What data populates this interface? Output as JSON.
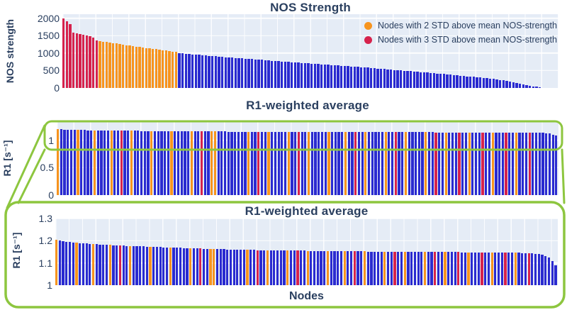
{
  "figure": {
    "top": {
      "title": "NOS Strength",
      "ylabel": "NOS strength"
    },
    "middle": {
      "title": "R1-weighted average",
      "ylabel": "R1 [s⁻¹]"
    },
    "bottom": {
      "title": "R1-weighted average",
      "ylabel": "R1 [s⁻¹]",
      "xlabel": "Nodes"
    },
    "legend": [
      {
        "color_key": "o",
        "label": "Nodes with 2 STD above mean NOS-strength"
      },
      {
        "color_key": "r",
        "label": "Nodes with 3 STD above mean NOS-strength"
      }
    ]
  },
  "colors": {
    "b": "#2a2ad0",
    "o": "#f7941e",
    "r": "#d6224c",
    "green": "#8dc63f",
    "plot_bg": "#e5ecf6",
    "text": "#2a3f5f"
  },
  "chart_data": [
    {
      "id": "nos",
      "type": "bar",
      "title": "NOS Strength",
      "xlabel": "",
      "ylabel": "NOS strength",
      "ylim": [
        0,
        2120
      ],
      "yticks": [
        0,
        500,
        1000,
        1500,
        2000
      ],
      "grid": true,
      "legend_position": "top-right-inside",
      "pitch": 4.667,
      "bar_width": 3.2,
      "values": [
        1990,
        1915,
        1840,
        1590,
        1565,
        1545,
        1530,
        1510,
        1480,
        1445,
        1370,
        1345,
        1330,
        1318,
        1305,
        1292,
        1278,
        1262,
        1246,
        1230,
        1215,
        1200,
        1188,
        1176,
        1164,
        1152,
        1140,
        1128,
        1116,
        1104,
        1090,
        1076,
        1062,
        1048,
        1030,
        1005,
        995,
        985,
        976,
        967,
        958,
        950,
        942,
        934,
        926,
        918,
        910,
        902,
        894,
        886,
        878,
        870,
        862,
        855,
        848,
        841,
        834,
        827,
        820,
        813,
        806,
        799,
        792,
        785,
        778,
        771,
        764,
        757,
        750,
        743,
        736,
        729,
        722,
        715,
        708,
        701,
        694,
        687,
        680,
        673,
        666,
        659,
        652,
        645,
        638,
        631,
        624,
        617,
        610,
        603,
        596,
        589,
        582,
        575,
        568,
        560,
        552,
        544,
        536,
        528,
        520,
        512,
        504,
        496,
        488,
        480,
        472,
        464,
        456,
        448,
        440,
        432,
        424,
        416,
        408,
        399,
        390,
        381,
        372,
        363,
        354,
        345,
        336,
        327,
        318,
        309,
        300,
        290,
        280,
        270,
        258,
        246,
        232,
        218,
        202,
        186,
        168,
        148,
        126,
        102,
        76,
        56,
        42,
        32,
        24,
        18,
        14,
        10,
        8,
        6
      ],
      "color_key": "rrrrrrrrrrroooooooooooooooooooooooobbbbbbbbbbbbbbbbbbbbbbbbbbbbbbbbbbbbbbbbbbbbbbbbbbbbbbbbbbbbbbbbbbbbbbbbbbbbbbbbbbbbbbbbbbbbbbbbbbbbbbbbbbbbbb"
    },
    {
      "id": "r1full",
      "type": "bar",
      "title": "R1-weighted average",
      "xlabel": "",
      "ylabel": "R1 [s⁻¹]",
      "ylim": [
        0,
        1.35
      ],
      "yticks": [
        0,
        0.5,
        1
      ],
      "grid": true,
      "pitch": 4.72,
      "bar_width": 3.2,
      "values": [
        1.205,
        1.201,
        1.198,
        1.196,
        1.194,
        1.192,
        1.19,
        1.189,
        1.188,
        1.187,
        1.186,
        1.185,
        1.184,
        1.183,
        1.182,
        1.181,
        1.181,
        1.18,
        1.179,
        1.178,
        1.178,
        1.177,
        1.176,
        1.176,
        1.175,
        1.174,
        1.174,
        1.173,
        1.172,
        1.172,
        1.171,
        1.171,
        1.17,
        1.17,
        1.169,
        1.169,
        1.168,
        1.168,
        1.167,
        1.167,
        1.166,
        1.166,
        1.165,
        1.165,
        1.164,
        1.164,
        1.163,
        1.163,
        1.163,
        1.162,
        1.162,
        1.161,
        1.161,
        1.161,
        1.16,
        1.16,
        1.16,
        1.159,
        1.159,
        1.159,
        1.158,
        1.158,
        1.158,
        1.157,
        1.157,
        1.157,
        1.157,
        1.156,
        1.156,
        1.156,
        1.156,
        1.155,
        1.155,
        1.155,
        1.155,
        1.154,
        1.154,
        1.154,
        1.154,
        1.154,
        1.153,
        1.153,
        1.153,
        1.153,
        1.153,
        1.153,
        1.152,
        1.152,
        1.152,
        1.152,
        1.152,
        1.152,
        1.152,
        1.151,
        1.151,
        1.151,
        1.151,
        1.151,
        1.151,
        1.151,
        1.151,
        1.15,
        1.15,
        1.15,
        1.15,
        1.15,
        1.15,
        1.15,
        1.15,
        1.15,
        1.15,
        1.15,
        1.15,
        1.149,
        1.149,
        1.149,
        1.149,
        1.149,
        1.149,
        1.149,
        1.149,
        1.148,
        1.148,
        1.148,
        1.148,
        1.148,
        1.148,
        1.148,
        1.148,
        1.147,
        1.147,
        1.147,
        1.147,
        1.147,
        1.147,
        1.146,
        1.146,
        1.146,
        1.146,
        1.145,
        1.145,
        1.144,
        1.143,
        1.142,
        1.14,
        1.137,
        1.132,
        1.124,
        1.11,
        1.088
      ],
      "color_key": "obbbbbobbbbobbbbobbrbbobbbbbobbbbbobbbbbobbrbboobbbbbbbbbobbrbbobbbbbobbrbbobbbbbobbbbobbrbbobbbbbobbrbbobbbbbobbrbbobbbrbbobbbrbbobbbrbbobbbrbbbbbbbb"
    },
    {
      "id": "r1zoom",
      "type": "bar",
      "title": "R1-weighted average",
      "xlabel": "Nodes",
      "ylabel": "R1 [s⁻¹]",
      "ylim": [
        1.0,
        1.3
      ],
      "yticks": [
        1,
        1.1,
        1.2,
        1.3
      ],
      "grid": true,
      "pitch": 4.727,
      "bar_width": 3.2,
      "values_ref": "r1full",
      "color_key_ref": "r1full"
    }
  ]
}
